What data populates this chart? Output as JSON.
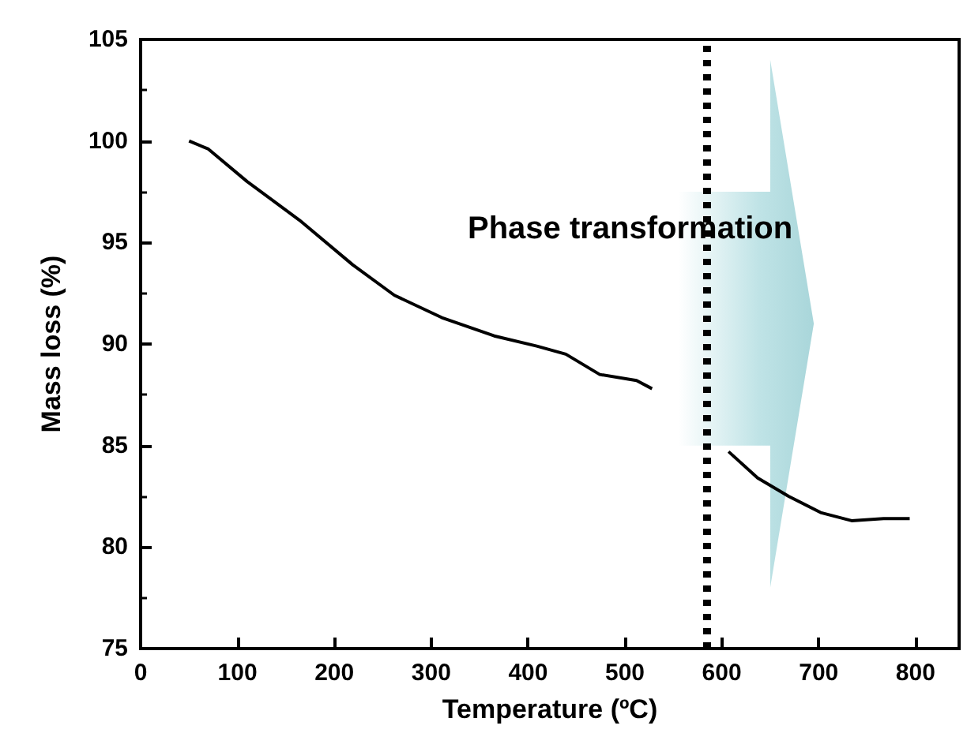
{
  "chart_data": {
    "type": "line",
    "xlabel": "Temperature (ºC)",
    "ylabel": "Mass loss (%)",
    "annotations": [
      "Phase transformation"
    ],
    "x": [
      50,
      70,
      110,
      164,
      219,
      262,
      311,
      365,
      409,
      439,
      474,
      512,
      528,
      547,
      607,
      637,
      669,
      702,
      734,
      767,
      794
    ],
    "series": [
      {
        "color": "#000000",
        "values": [
          100,
          99.6,
          98,
          96.1,
          93.9,
          92.4,
          91.3,
          90.4,
          89.9,
          89.5,
          88.5,
          88.2,
          87.8,
          null,
          84.7,
          83.4,
          82.5,
          81.7,
          81.3,
          81.4,
          81.4
        ]
      }
    ],
    "xlim": [
      0,
      845
    ],
    "xticks": [
      0,
      100,
      200,
      300,
      400,
      500,
      600,
      700,
      800
    ],
    "ylim": [
      75,
      105
    ],
    "yticks": [
      75,
      80,
      85,
      90,
      95,
      100,
      105
    ],
    "ref_lines": [
      {
        "axis": "x",
        "value": 585,
        "color": "#000000",
        "line_style": "dotted"
      }
    ],
    "grid": false,
    "marker": "none",
    "line_style": "solid"
  }
}
